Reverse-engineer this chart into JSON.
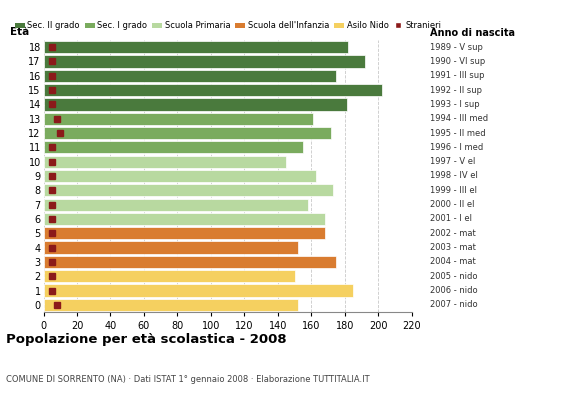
{
  "ages": [
    18,
    17,
    16,
    15,
    14,
    13,
    12,
    11,
    10,
    9,
    8,
    7,
    6,
    5,
    4,
    3,
    2,
    1,
    0
  ],
  "values": [
    182,
    192,
    175,
    202,
    181,
    161,
    172,
    155,
    145,
    163,
    173,
    158,
    168,
    168,
    152,
    175,
    150,
    185,
    152
  ],
  "stranieri": [
    5,
    5,
    5,
    5,
    5,
    8,
    10,
    5,
    5,
    5,
    5,
    5,
    5,
    5,
    5,
    5,
    5,
    5,
    8
  ],
  "anno_di_nascita": [
    "1989 - V sup",
    "1990 - VI sup",
    "1991 - III sup",
    "1992 - II sup",
    "1993 - I sup",
    "1994 - III med",
    "1995 - II med",
    "1996 - I med",
    "1997 - V el",
    "1998 - IV el",
    "1999 - III el",
    "2000 - II el",
    "2001 - I el",
    "2002 - mat",
    "2003 - mat",
    "2004 - mat",
    "2005 - nido",
    "2006 - nido",
    "2007 - nido"
  ],
  "colors": {
    "sec2": "#4a7a3d",
    "sec1": "#7aab5e",
    "primaria": "#b8d9a0",
    "infanzia": "#d97c30",
    "nido": "#f5d060",
    "stranieri": "#8b1a1a"
  },
  "bar_colors": [
    "#4a7a3d",
    "#4a7a3d",
    "#4a7a3d",
    "#4a7a3d",
    "#4a7a3d",
    "#7aab5e",
    "#7aab5e",
    "#7aab5e",
    "#b8d9a0",
    "#b8d9a0",
    "#b8d9a0",
    "#b8d9a0",
    "#b8d9a0",
    "#d97c30",
    "#d97c30",
    "#d97c30",
    "#f5d060",
    "#f5d060",
    "#f5d060"
  ],
  "title": "Popolazione per età scolastica - 2008",
  "subtitle": "COMUNE DI SORRENTO (NA) · Dati ISTAT 1° gennaio 2008 · Elaborazione TUTTITALIA.IT",
  "label_eta": "Età",
  "label_anno": "Anno di nascita",
  "xlim": [
    0,
    220
  ],
  "xticks": [
    0,
    20,
    40,
    60,
    80,
    100,
    120,
    140,
    160,
    180,
    200,
    220
  ],
  "legend_labels": [
    "Sec. II grado",
    "Sec. I grado",
    "Scuola Primaria",
    "Scuola dell'Infanzia",
    "Asilo Nido",
    "Stranieri"
  ],
  "legend_colors": [
    "#4a7a3d",
    "#7aab5e",
    "#b8d9a0",
    "#d97c30",
    "#f5d060",
    "#8b1a1a"
  ]
}
